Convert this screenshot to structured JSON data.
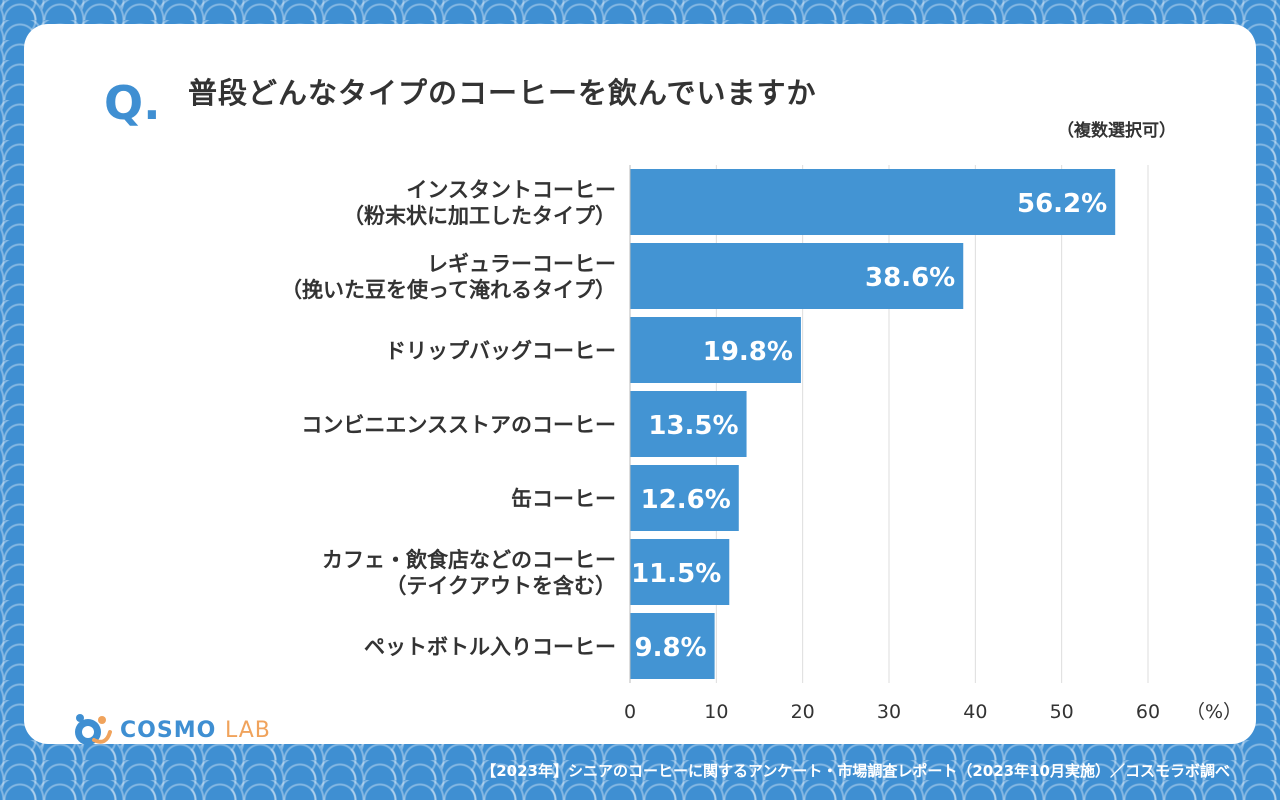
{
  "question": {
    "mark": "Q.",
    "title": "普段どんなタイプのコーヒーを飲んでいますか",
    "note": "（複数選択可）"
  },
  "colors": {
    "bar": "#4394d3",
    "background": "#3f8fd2",
    "text": "#333333",
    "grid": "#dddddd",
    "logo_accent": "#f0a35c"
  },
  "chart_data": {
    "type": "bar",
    "orientation": "horizontal",
    "categories": [
      [
        "インスタントコーヒー",
        "（粉末状に加工したタイプ）"
      ],
      [
        "レギュラーコーヒー",
        "（挽いた豆を使って淹れるタイプ）"
      ],
      [
        "ドリップバッグコーヒー"
      ],
      [
        "コンビニエンスストアのコーヒー"
      ],
      [
        "缶コーヒー"
      ],
      [
        "カフェ・飲食店などのコーヒー",
        "（テイクアウトを含む）"
      ],
      [
        "ペットボトル入りコーヒー"
      ]
    ],
    "values": [
      56.2,
      38.6,
      19.8,
      13.5,
      12.6,
      11.5,
      9.8
    ],
    "value_labels": [
      "56.2%",
      "38.6%",
      "19.8%",
      "13.5%",
      "12.6%",
      "11.5%",
      "9.8%"
    ],
    "x_ticks": [
      0,
      10,
      20,
      30,
      40,
      50,
      60
    ],
    "x_unit": "（%）",
    "xlim": [
      0,
      60
    ],
    "grid": true
  },
  "logo": {
    "text_main": "COSMO",
    "text_sub": "LAB"
  },
  "footer": "【2023年】シニアのコーヒーに関するアンケート・市場調査レポート（2023年10月実施）／コスモラボ調べ"
}
